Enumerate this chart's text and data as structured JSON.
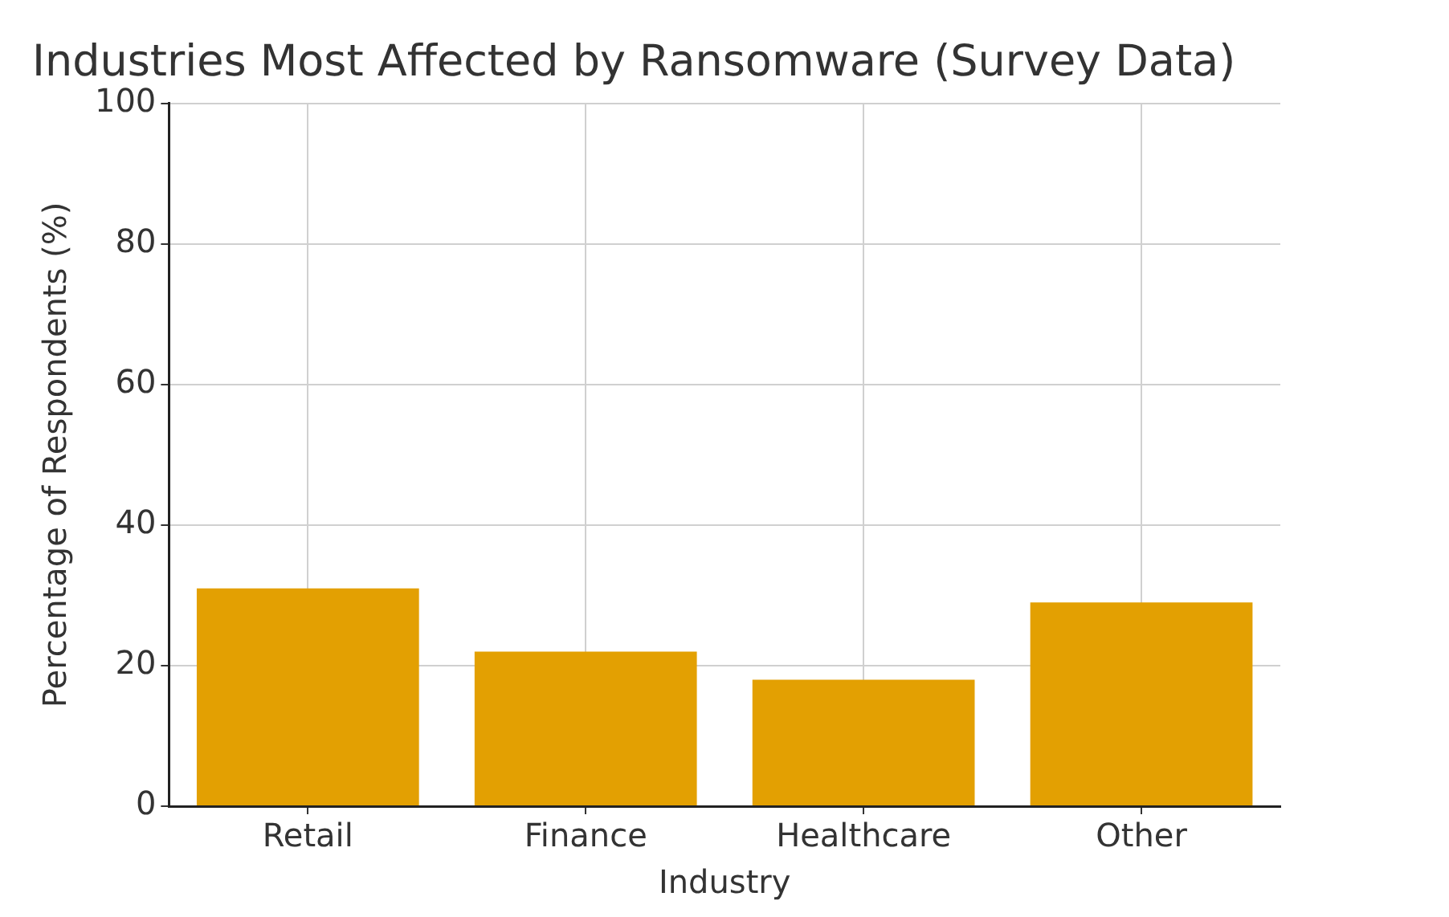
{
  "chart_data": {
    "type": "bar",
    "title": "Industries Most Affected by Ransomware (Survey Data)",
    "xlabel": "Industry",
    "ylabel": "Percentage of Respondents (%)",
    "categories": [
      "Retail",
      "Finance",
      "Healthcare",
      "Other"
    ],
    "values": [
      31,
      22,
      18,
      29
    ],
    "color": "#e3a002",
    "ylim": [
      0,
      100
    ],
    "yticks": [
      0,
      20,
      40,
      60,
      80,
      100
    ],
    "grid": true
  }
}
